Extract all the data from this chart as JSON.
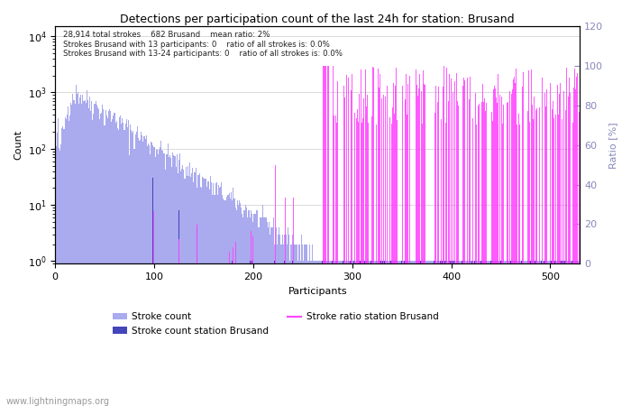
{
  "title": "Detections per participation count of the last 24h for station: Brusand",
  "xlabel": "Participants",
  "ylabel_left": "Count",
  "ylabel_right": "Ratio [%]",
  "annotation_lines": [
    "28,914 total strokes    682 Brusand    mean ratio: 2%",
    "Strokes Brusand with 13 participants: 0    ratio of all strokes is: 0.0%",
    "Strokes Brusand with 13-24 participants: 0    ratio of all strokes is: 0.0%"
  ],
  "watermark": "www.lightningmaps.org",
  "legend_labels": [
    "Stroke count",
    "Stroke count station Brusand",
    "Stroke ratio station Brusand"
  ],
  "bar_color_all": "#aaaaee",
  "bar_color_station": "#4444bb",
  "line_color_ratio": "#ff44ff",
  "xlim": [
    0,
    530
  ],
  "ylim_left": [
    0.9,
    15000
  ],
  "ylim_right": [
    0,
    120
  ],
  "right_ticks": [
    0,
    20,
    40,
    60,
    80,
    100,
    120
  ],
  "background_color": "#ffffff",
  "grid_color": "#cccccc"
}
